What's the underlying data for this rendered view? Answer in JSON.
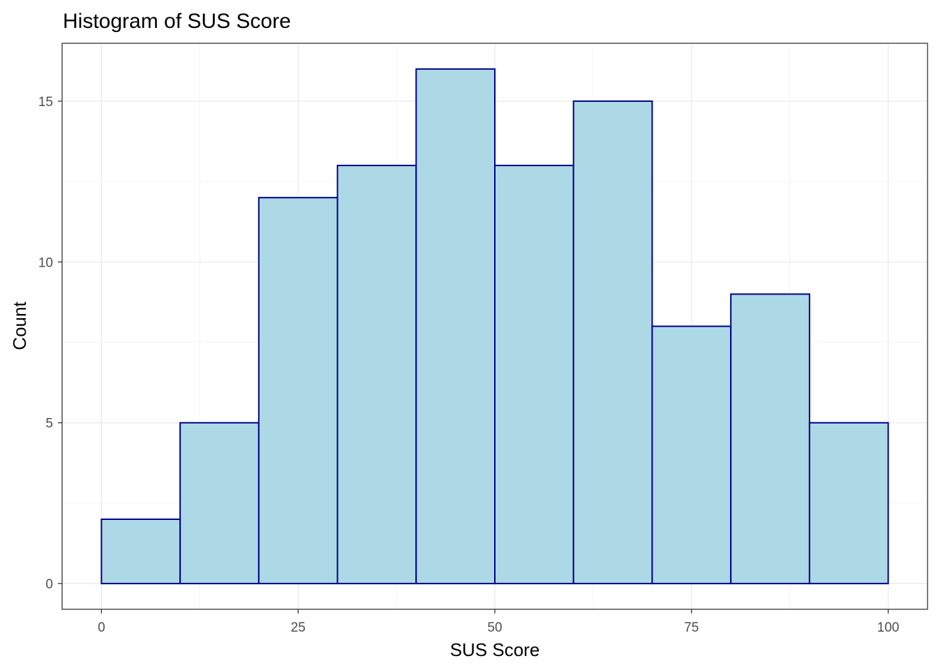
{
  "chart_data": {
    "type": "bar",
    "title": "Histogram of SUS Score",
    "xlabel": "SUS Score",
    "ylabel": "Count",
    "bin_width": 10,
    "bins": [
      {
        "x0": 0,
        "x1": 10,
        "count": 2
      },
      {
        "x0": 10,
        "x1": 20,
        "count": 5
      },
      {
        "x0": 20,
        "x1": 30,
        "count": 12
      },
      {
        "x0": 30,
        "x1": 40,
        "count": 13
      },
      {
        "x0": 40,
        "x1": 50,
        "count": 16
      },
      {
        "x0": 50,
        "x1": 60,
        "count": 13
      },
      {
        "x0": 60,
        "x1": 70,
        "count": 15
      },
      {
        "x0": 70,
        "x1": 80,
        "count": 8
      },
      {
        "x0": 80,
        "x1": 90,
        "count": 9
      },
      {
        "x0": 90,
        "x1": 100,
        "count": 5
      }
    ],
    "x_ticks": [
      0,
      25,
      50,
      75,
      100
    ],
    "y_ticks": [
      0,
      5,
      10,
      15
    ],
    "xlim": [
      -5,
      105
    ],
    "ylim": [
      -0.8,
      16.8
    ],
    "grid": true,
    "legend": "none",
    "colors": {
      "bar_fill": "#add8e6",
      "bar_stroke": "#00008b",
      "grid_major": "#ebebeb",
      "grid_minor": "#f4f4f4",
      "panel_border": "#333333",
      "tick_label": "#4d4d4d"
    }
  }
}
